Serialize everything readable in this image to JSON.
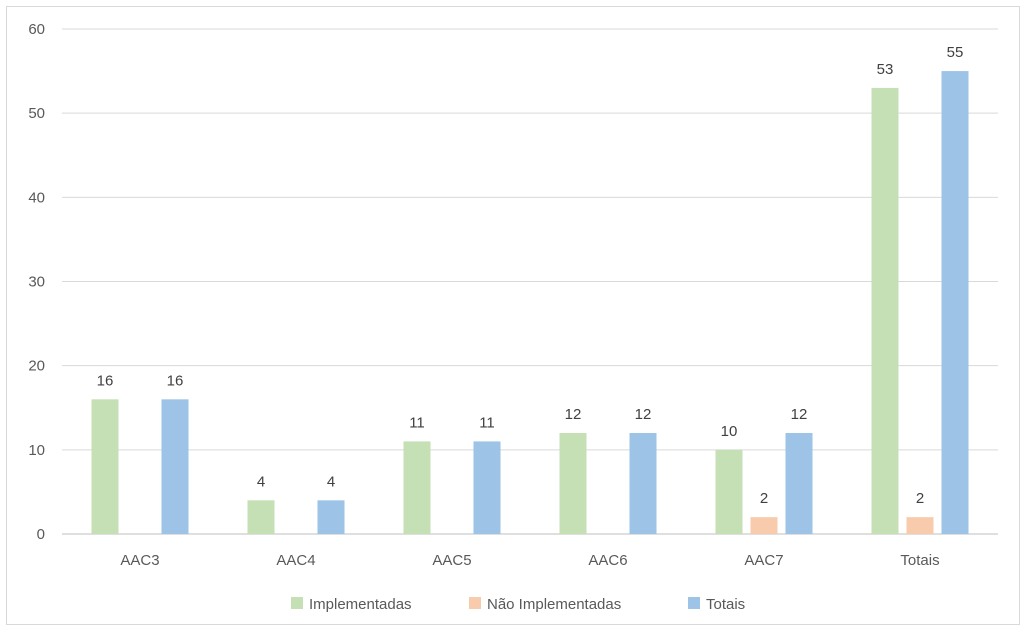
{
  "chart_data": {
    "type": "bar",
    "title": "",
    "xlabel": "",
    "ylabel": "",
    "ylim": [
      0,
      60
    ],
    "yticks": [
      0,
      10,
      20,
      30,
      40,
      50,
      60
    ],
    "grid": true,
    "legend_position": "bottom",
    "categories": [
      "AAC3",
      "AAC4",
      "AAC5",
      "AAC6",
      "AAC7",
      "Totais"
    ],
    "series": [
      {
        "name": "Implementadas",
        "color": "#c5e0b4",
        "values": [
          16,
          4,
          11,
          12,
          10,
          53
        ]
      },
      {
        "name": "Não Implementadas",
        "color": "#f8cbad",
        "values": [
          null,
          null,
          null,
          null,
          2,
          2
        ]
      },
      {
        "name": "Totais",
        "color": "#9dc3e6",
        "values": [
          16,
          4,
          11,
          12,
          12,
          55
        ]
      }
    ]
  }
}
